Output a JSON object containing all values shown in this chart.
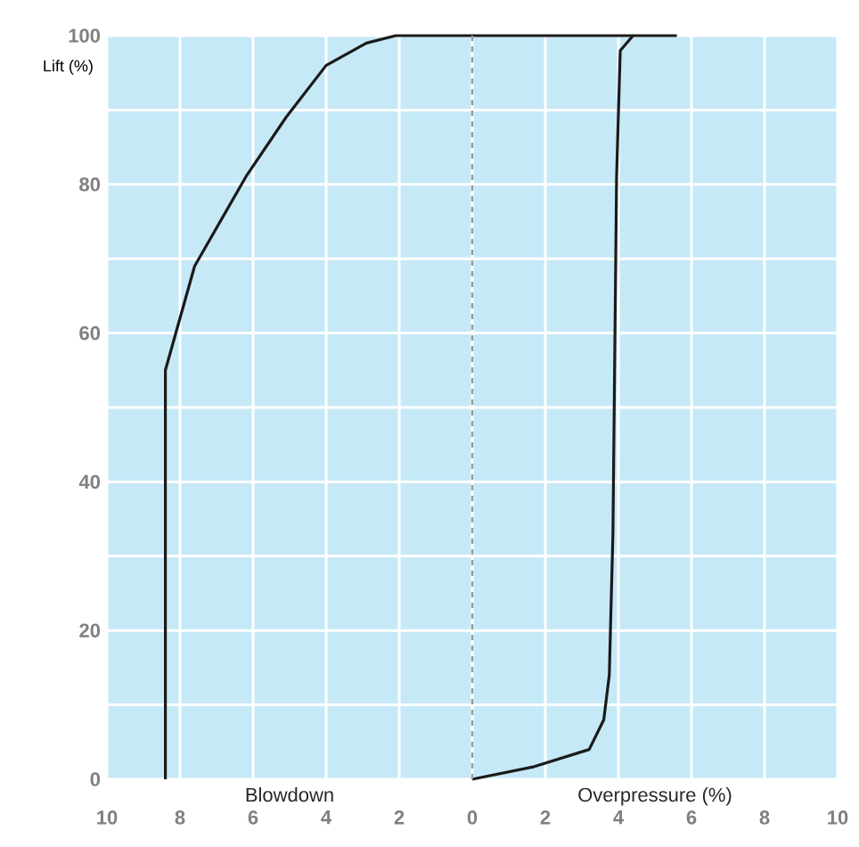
{
  "chart_data": {
    "type": "line",
    "ylabel": "Lift (%)",
    "annotations": [
      "Blowdown",
      "Overpressure (%)"
    ],
    "series": [
      {
        "x": [
          -8.4,
          -8.4,
          -7.6,
          -6.2,
          -5.1,
          -4.0,
          -2.9,
          -2.1,
          0,
          4.4
        ],
        "values": [
          0,
          55,
          69,
          81,
          89,
          96,
          99,
          100,
          100,
          100
        ],
        "color": "#1a1a1a"
      },
      {
        "x": [
          0,
          1.7,
          3.2,
          3.6,
          3.75,
          3.85,
          3.95,
          4.05,
          4.4,
          5.6
        ],
        "values": [
          0,
          1.7,
          4,
          8,
          14,
          33,
          81,
          98,
          100,
          100
        ],
        "color": "#1a1a1a"
      }
    ],
    "xlim": [
      -10,
      10
    ],
    "ylim": [
      0,
      100
    ],
    "xticks": [
      {
        "value": -10,
        "label": "10"
      },
      {
        "value": -8,
        "label": "8"
      },
      {
        "value": -6,
        "label": "6"
      },
      {
        "value": -4,
        "label": "4"
      },
      {
        "value": -2,
        "label": "2"
      },
      0,
      2,
      4,
      6,
      8,
      10
    ],
    "yticks": [
      0,
      {
        "value": 10,
        "label": null
      },
      20,
      {
        "value": 30,
        "label": null
      },
      40,
      {
        "value": 50,
        "label": null
      },
      60,
      {
        "value": 70,
        "label": null
      },
      80,
      {
        "value": 90,
        "label": null
      },
      100
    ],
    "ref_lines": [
      {
        "axis": "x",
        "value": 0,
        "color": "#999999",
        "line_style": "dashed"
      }
    ],
    "grid": true,
    "marker": "none",
    "line_style": "solid"
  }
}
